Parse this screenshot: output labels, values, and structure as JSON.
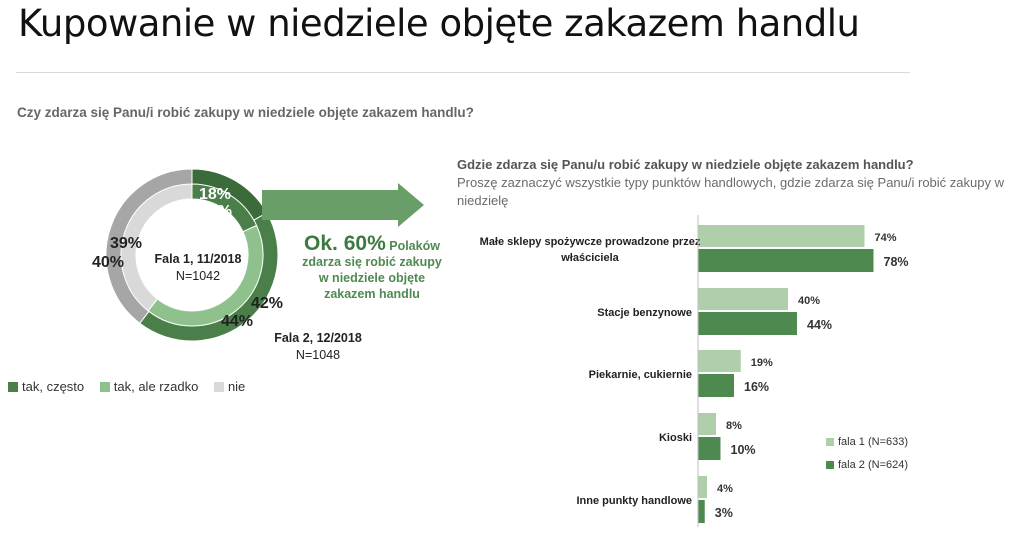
{
  "page": {
    "title": "Kupowanie w niedziele objęte zakazem handlu",
    "question_main": "Czy zdarza się Panu/i robić zakupy w niedziele objęte zakazem handlu?",
    "question2_bold": "Gdzie zdarza się Panu/u robić zakupy w niedziele objęte zakazem handlu?",
    "question2_note": "Proszę zaznaczyć wszystkie typy punktów handlowych, gdzie zdarza się Panu/i robić zakupy w niedzielę",
    "callout_big": "Ok. 60%",
    "callout_rest": " Polaków zdarza się robić zakupy w niedziele objęte zakazem handlu",
    "wave1_label": "Fala 1, 11/2018",
    "wave1_n": "N=1042",
    "wave2_label": "Fala 2, 12/2018",
    "wave2_n": "N=1048"
  },
  "colors": {
    "dark_green": "#4a7f4a",
    "light_green": "#8fc18d",
    "light_grey": "#d9d9d9",
    "mid_grey": "#a6a6a6",
    "darkest_green": "#3b6b3b",
    "bar_light": "#aecfa9",
    "bar_dark": "#4e8a50",
    "arrow": "#6a9e68"
  },
  "chart_data": [
    {
      "type": "pie",
      "title": "",
      "legend": [
        "tak, często",
        "tak, ale rzadko",
        "nie"
      ],
      "legend_position": "bottom-left",
      "series": [
        {
          "name": "Fala 1, 11/2018",
          "ring": "inner",
          "values": [
            18,
            42,
            39
          ],
          "labels": [
            "18%",
            "42%",
            "39%"
          ]
        },
        {
          "name": "Fala 2, 12/2018",
          "ring": "outer",
          "values": [
            17,
            44,
            40
          ],
          "labels": [
            "17%",
            "44%",
            "40%"
          ]
        }
      ]
    },
    {
      "type": "bar",
      "orientation": "horizontal",
      "categories": [
        "Małe sklepy spożywcze prowadzone przez właściciela",
        "Stacje benzynowe",
        "Piekarnie, cukiernie",
        "Kioski",
        "Inne punkty handlowe"
      ],
      "series": [
        {
          "name": "fala 1 (N=633)",
          "values": [
            74,
            40,
            19,
            8,
            4
          ],
          "labels": [
            "74%",
            "40%",
            "19%",
            "8%",
            "4%"
          ]
        },
        {
          "name": "fala 2 (N=624)",
          "values": [
            78,
            44,
            16,
            10,
            3
          ],
          "labels": [
            "78%",
            "44%",
            "16%",
            "10%",
            "3%"
          ]
        }
      ],
      "xlim": [
        0,
        100
      ],
      "legend_position": "bottom-right"
    }
  ]
}
